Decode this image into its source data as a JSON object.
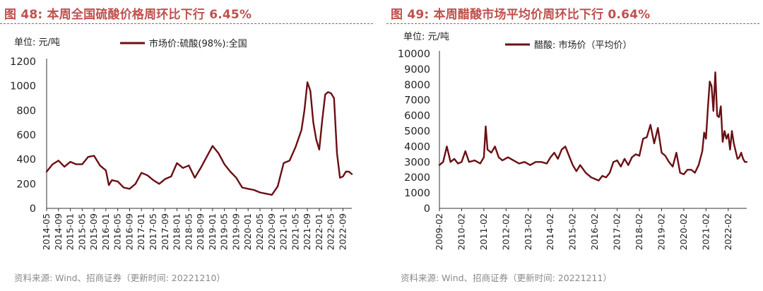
{
  "panels": [
    {
      "title": "图 48:  本周全国硫酸价格周环比下行 6.45%",
      "source": "资料来源: Wind、招商证券（更新时间: 20221210）"
    },
    {
      "title": "图 49:  本周醋酸市场平均价周环比下行 0.64%",
      "source": "资料来源: Wind、招商证券（更新时间: 20221211）"
    }
  ],
  "colors": {
    "title": "#C0504D",
    "line": "#6B0F14",
    "rule": "#C0504D",
    "source": "#8a8a8a"
  },
  "chart_data": [
    {
      "type": "line",
      "unit_label": "单位:  元/吨",
      "ylim": [
        0,
        1200
      ],
      "yticks": [
        0,
        200,
        400,
        600,
        800,
        1000,
        1200
      ],
      "xlim": [
        "2014-05",
        "2022-12"
      ],
      "x_tick_labels": [
        "2014-05",
        "2014-09",
        "2015-01",
        "2015-05",
        "2015-09",
        "2016-01",
        "2016-05",
        "2016-09",
        "2017-01",
        "2017-05",
        "2017-09",
        "2018-01",
        "2018-05",
        "2018-09",
        "2019-01",
        "2019-05",
        "2019-09",
        "2020-01",
        "2020-05",
        "2020-09",
        "2021-01",
        "2021-05",
        "2021-09",
        "2022-01",
        "2022-05",
        "2022-09"
      ],
      "series": [
        {
          "name": "市场价:硫酸(98%):全国",
          "x": [
            "2014-05",
            "2014-07",
            "2014-09",
            "2014-11",
            "2015-01",
            "2015-03",
            "2015-05",
            "2015-07",
            "2015-09",
            "2015-11",
            "2016-01",
            "2016-02",
            "2016-03",
            "2016-05",
            "2016-07",
            "2016-09",
            "2016-11",
            "2017-01",
            "2017-03",
            "2017-05",
            "2017-07",
            "2017-09",
            "2017-11",
            "2018-01",
            "2018-02",
            "2018-03",
            "2018-05",
            "2018-07",
            "2018-09",
            "2018-11",
            "2019-01",
            "2019-03",
            "2019-05",
            "2019-07",
            "2019-09",
            "2019-11",
            "2020-01",
            "2020-03",
            "2020-05",
            "2020-07",
            "2020-09",
            "2020-11",
            "2021-01",
            "2021-03",
            "2021-05",
            "2021-07",
            "2021-08",
            "2021-09",
            "2021-10",
            "2021-11",
            "2021-12",
            "2022-01",
            "2022-02",
            "2022-03",
            "2022-04",
            "2022-05",
            "2022-06",
            "2022-07",
            "2022-08",
            "2022-09",
            "2022-10",
            "2022-11",
            "2022-12"
          ],
          "y": [
            300,
            360,
            390,
            340,
            380,
            360,
            360,
            420,
            430,
            350,
            310,
            190,
            230,
            220,
            170,
            160,
            200,
            290,
            270,
            230,
            200,
            240,
            260,
            370,
            350,
            330,
            350,
            250,
            330,
            420,
            510,
            450,
            360,
            300,
            250,
            170,
            160,
            150,
            130,
            120,
            110,
            180,
            370,
            390,
            500,
            640,
            800,
            1030,
            960,
            700,
            560,
            480,
            720,
            930,
            950,
            940,
            900,
            450,
            250,
            260,
            300,
            300,
            280
          ]
        }
      ]
    },
    {
      "type": "line",
      "unit_label": "单位:  元/吨",
      "ylim": [
        0,
        10000
      ],
      "yticks": [
        0,
        1000,
        2000,
        3000,
        4000,
        5000,
        6000,
        7000,
        8000,
        9000,
        10000
      ],
      "xlim": [
        "2009-02",
        "2022-12"
      ],
      "x_tick_labels": [
        "2009-02",
        "2010-02",
        "2011-02",
        "2012-02",
        "2013-02",
        "2014-02",
        "2015-02",
        "2016-02",
        "2017-02",
        "2018-02",
        "2019-02",
        "2020-02",
        "2021-02",
        "2022-02"
      ],
      "series": [
        {
          "name": "醋酸:  市场价（平均价）",
          "x": [
            "2009-02",
            "2009-04",
            "2009-06",
            "2009-08",
            "2009-10",
            "2009-12",
            "2010-02",
            "2010-04",
            "2010-06",
            "2010-09",
            "2010-12",
            "2011-02",
            "2011-03",
            "2011-04",
            "2011-06",
            "2011-08",
            "2011-10",
            "2011-12",
            "2012-03",
            "2012-06",
            "2012-09",
            "2012-12",
            "2013-03",
            "2013-06",
            "2013-09",
            "2013-12",
            "2014-02",
            "2014-04",
            "2014-06",
            "2014-08",
            "2014-10",
            "2014-12",
            "2015-02",
            "2015-04",
            "2015-06",
            "2015-09",
            "2015-12",
            "2016-02",
            "2016-04",
            "2016-06",
            "2016-08",
            "2016-10",
            "2016-12",
            "2017-02",
            "2017-04",
            "2017-06",
            "2017-08",
            "2017-10",
            "2017-12",
            "2018-02",
            "2018-04",
            "2018-06",
            "2018-08",
            "2018-10",
            "2018-12",
            "2019-02",
            "2019-04",
            "2019-06",
            "2019-08",
            "2019-10",
            "2019-12",
            "2020-02",
            "2020-04",
            "2020-06",
            "2020-08",
            "2020-10",
            "2020-12",
            "2021-01",
            "2021-02",
            "2021-03",
            "2021-04",
            "2021-05",
            "2021-06",
            "2021-07",
            "2021-08",
            "2021-09",
            "2021-10",
            "2021-11",
            "2021-12",
            "2022-01",
            "2022-02",
            "2022-03",
            "2022-04",
            "2022-05",
            "2022-06",
            "2022-07",
            "2022-08",
            "2022-09",
            "2022-10",
            "2022-11",
            "2022-12"
          ],
          "y": [
            2800,
            3000,
            4000,
            3000,
            3200,
            2900,
            3000,
            3700,
            3000,
            3100,
            2900,
            3300,
            5300,
            3800,
            3600,
            4000,
            3300,
            3100,
            3300,
            3100,
            2900,
            3000,
            2800,
            3000,
            3000,
            2900,
            3300,
            3600,
            3200,
            3800,
            4000,
            3400,
            2800,
            2400,
            2800,
            2300,
            2000,
            1900,
            1800,
            2100,
            2000,
            2300,
            3000,
            3100,
            2700,
            3200,
            2800,
            3300,
            3500,
            3400,
            4500,
            4600,
            5400,
            4200,
            5200,
            3600,
            3400,
            3000,
            2700,
            3600,
            2300,
            2200,
            2500,
            2500,
            2300,
            2800,
            3700,
            4900,
            4500,
            6500,
            8200,
            7900,
            6300,
            8800,
            6000,
            5900,
            6600,
            4300,
            5000,
            4500,
            4800,
            3800,
            5000,
            4200,
            3700,
            3200,
            3300,
            3600,
            3200,
            3000,
            3000
          ]
        }
      ]
    }
  ]
}
